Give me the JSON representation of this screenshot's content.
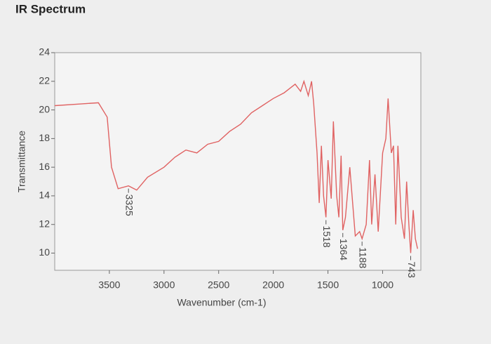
{
  "chart_data": {
    "type": "line",
    "title": "IR Spectrum",
    "xlabel": "Wavenumber (cm-1)",
    "ylabel": "Transmittance",
    "x": [
      4000,
      3800,
      3600,
      3520,
      3480,
      3420,
      3325,
      3250,
      3150,
      3000,
      2900,
      2800,
      2700,
      2600,
      2500,
      2400,
      2300,
      2200,
      2100,
      2000,
      1900,
      1800,
      1750,
      1720,
      1680,
      1650,
      1630,
      1600,
      1580,
      1560,
      1540,
      1518,
      1500,
      1470,
      1450,
      1420,
      1400,
      1380,
      1364,
      1340,
      1300,
      1250,
      1210,
      1188,
      1150,
      1120,
      1100,
      1070,
      1040,
      1000,
      970,
      950,
      920,
      900,
      880,
      860,
      830,
      800,
      780,
      760,
      743,
      720,
      700,
      680
    ],
    "series": [
      {
        "name": "Transmittance",
        "color": "#e06262",
        "values": [
          20.3,
          20.4,
          20.5,
          19.5,
          16,
          14.5,
          14.7,
          14.4,
          15.3,
          16.0,
          16.7,
          17.2,
          17.0,
          17.6,
          17.8,
          18.5,
          19.0,
          19.8,
          20.3,
          20.8,
          21.2,
          21.8,
          21.3,
          22.0,
          21.0,
          22.0,
          20.4,
          17.0,
          13.5,
          17.5,
          14.0,
          12.5,
          16.5,
          13.8,
          19.2,
          14.0,
          12.5,
          16.8,
          11.6,
          12.5,
          16.0,
          11.2,
          11.5,
          11.0,
          12.0,
          16.5,
          12.0,
          15.5,
          11.5,
          17.0,
          18.0,
          20.8,
          17.0,
          17.5,
          12.0,
          17.5,
          12.5,
          11.0,
          15.0,
          12.0,
          10.0,
          13.0,
          11.0,
          10.3
        ]
      }
    ],
    "annotations": [
      3325,
      1518,
      1364,
      1188,
      743
    ],
    "xlim": [
      4000,
      650
    ],
    "xticks": [
      3500,
      3000,
      2500,
      2000,
      1500,
      1000
    ],
    "ylim": [
      8.8,
      24
    ],
    "yticks": [
      10,
      12,
      14,
      16,
      18,
      20,
      22,
      24
    ]
  }
}
